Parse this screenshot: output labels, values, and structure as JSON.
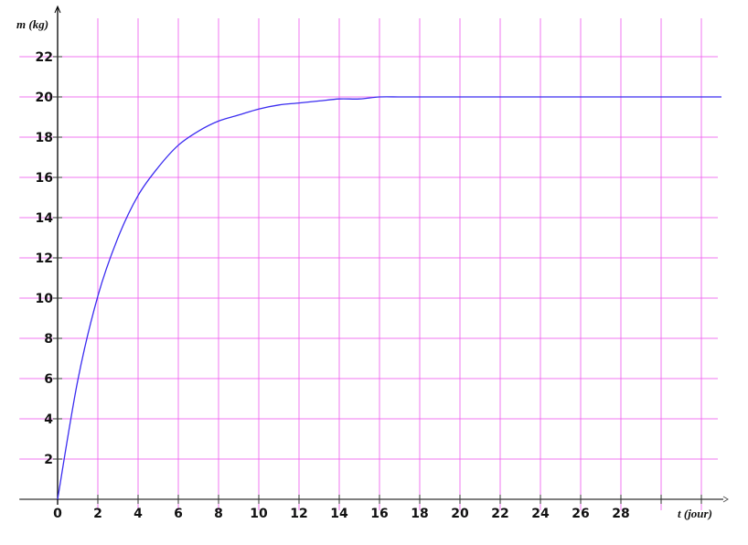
{
  "chart_data": {
    "type": "line",
    "xlabel": "t (jour)",
    "ylabel": "m (kg)",
    "xlim": [
      -1.9,
      33
    ],
    "ylim": [
      0,
      23
    ],
    "grid": true,
    "x_ticks": [
      0,
      2,
      4,
      6,
      8,
      10,
      12,
      14,
      16,
      18,
      20,
      22,
      24,
      26,
      28
    ],
    "y_ticks": [
      2,
      4,
      6,
      8,
      10,
      12,
      14,
      16,
      18,
      20,
      22
    ],
    "colors": {
      "grid": "#f060f0",
      "curve": "#3a2cf0",
      "axis": "#000000"
    },
    "series": [
      {
        "x": [
          0,
          1,
          2,
          3,
          4,
          5,
          6,
          7,
          8,
          9,
          10,
          11,
          12,
          13,
          14,
          15,
          16,
          17,
          18,
          19,
          20,
          22,
          24,
          26,
          28,
          30,
          32,
          33
        ],
        "y": [
          0,
          5.9,
          10.1,
          13.0,
          15.1,
          16.5,
          17.6,
          18.3,
          18.8,
          19.1,
          19.4,
          19.6,
          19.7,
          19.8,
          19.9,
          19.9,
          20.0,
          20.0,
          20.0,
          20.0,
          20.0,
          20.0,
          20.0,
          20.0,
          20.0,
          20.0,
          20.0,
          20.0
        ]
      }
    ]
  }
}
